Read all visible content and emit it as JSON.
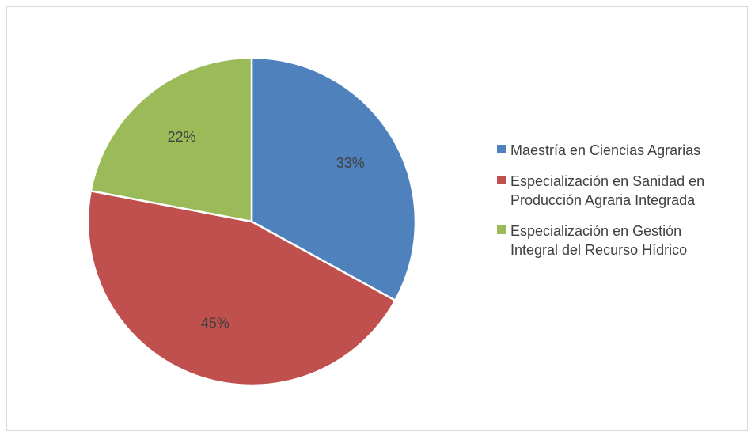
{
  "chart_data": {
    "type": "pie",
    "title": "",
    "categories": [
      "Maestría en Ciencias Agrarias",
      "Especialización en Sanidad en\nProducción Agraria Integrada",
      "Especialización en Gestión\nIntegral del Recurso Hídrico"
    ],
    "values": [
      33,
      45,
      22
    ],
    "data_labels": [
      "33%",
      "45%",
      "22%"
    ],
    "colors": [
      "#4f81bd",
      "#c0504d",
      "#9bbb59"
    ],
    "legend": "right",
    "start_angle_deg": 0,
    "direction": "clockwise"
  }
}
